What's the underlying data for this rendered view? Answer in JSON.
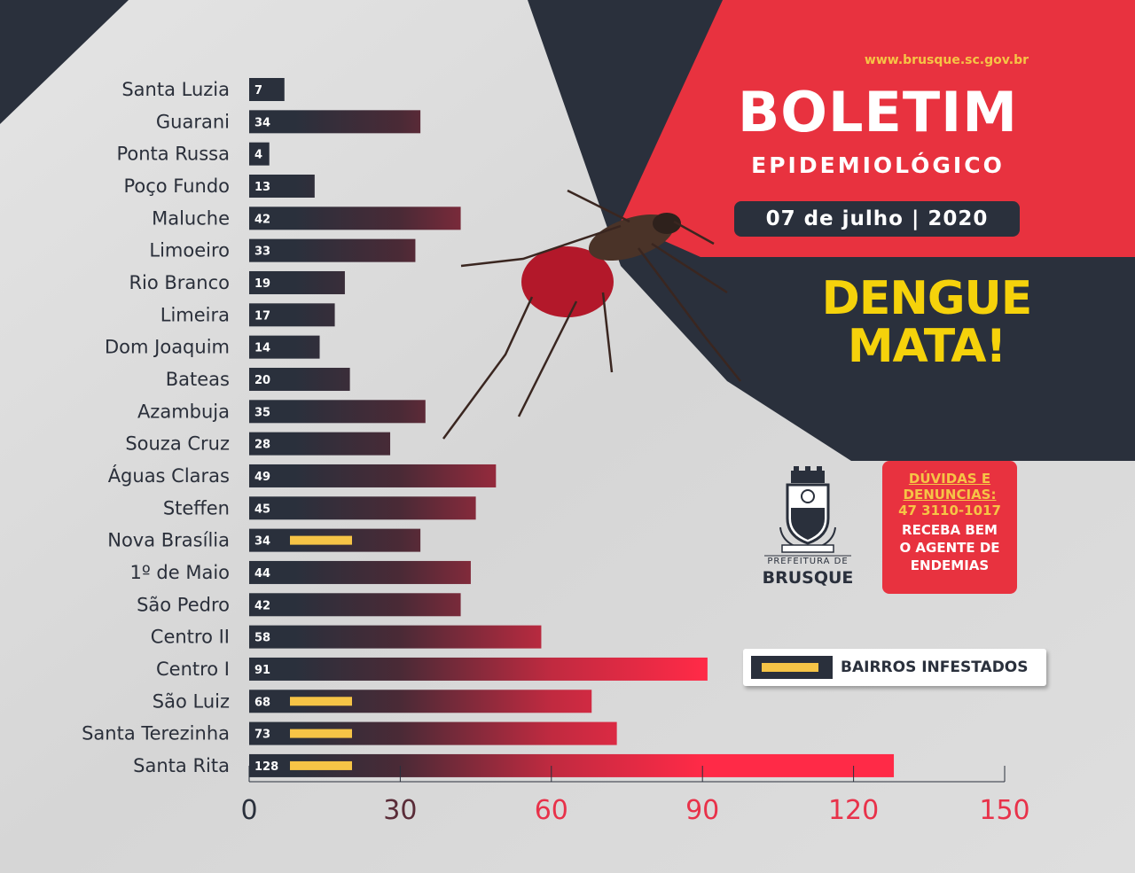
{
  "header": {
    "url": "www.brusque.sc.gov.br",
    "title": "BOLETIM",
    "subtitle": "EPIDEMIOLÓGICO",
    "date": "07 de julho | 2020",
    "slogan_line1": "DENGUE",
    "slogan_line2": "MATA!"
  },
  "logo": {
    "prefix": "PREFEITURA DE",
    "city": "BRUSQUE"
  },
  "info_box": {
    "line1": "DÚVIDAS E",
    "line2": "DENUNCIAS:",
    "phone": "47 3110-1017",
    "line3": "RECEBA BEM",
    "line4": "O AGENTE DE",
    "line5": "ENDEMIAS"
  },
  "legend": {
    "label": "BAIRROS INFESTADOS"
  },
  "colors": {
    "dark": "#2a303c",
    "red": "#ff2a47",
    "yellow": "#f6c446",
    "header_red": "#e8323f",
    "tick_dark": "#2a303c",
    "tick_mid": "#5a2c38",
    "tick_red": "#e8324a"
  },
  "chart_data": {
    "type": "bar",
    "orientation": "horizontal",
    "categories": [
      "Santa Luzia",
      "Guarani",
      "Ponta Russa",
      "Poço Fundo",
      "Maluche",
      "Limoeiro",
      "Rio Branco",
      "Limeira",
      "Dom Joaquim",
      "Bateas",
      "Azambuja",
      "Souza Cruz",
      "Águas Claras",
      "Steffen",
      "Nova Brasília",
      "1º de Maio",
      "São Pedro",
      "Centro II",
      "Centro I",
      "São Luiz",
      "Santa Terezinha",
      "Santa Rita"
    ],
    "values": [
      7,
      34,
      4,
      13,
      42,
      33,
      19,
      17,
      14,
      20,
      35,
      28,
      49,
      45,
      34,
      44,
      42,
      58,
      91,
      68,
      73,
      128
    ],
    "value_labels": [
      "7",
      "34",
      "4",
      "13",
      "42",
      "33",
      "19",
      "17",
      "14",
      "20",
      "35",
      "28",
      "49",
      "45",
      "34",
      "44",
      "42",
      "58",
      "91",
      "68",
      "73",
      "128"
    ],
    "infested": [
      false,
      false,
      false,
      false,
      false,
      false,
      false,
      false,
      false,
      false,
      false,
      false,
      false,
      false,
      true,
      false,
      false,
      false,
      false,
      true,
      true,
      true
    ],
    "xlim": [
      0,
      150
    ],
    "ticks": [
      "0",
      "30",
      "60",
      "90",
      "120",
      "150"
    ],
    "tick_values": [
      0,
      30,
      60,
      90,
      120,
      150
    ],
    "legend": [
      "BAIRROS INFESTADOS"
    ],
    "grid": false
  }
}
